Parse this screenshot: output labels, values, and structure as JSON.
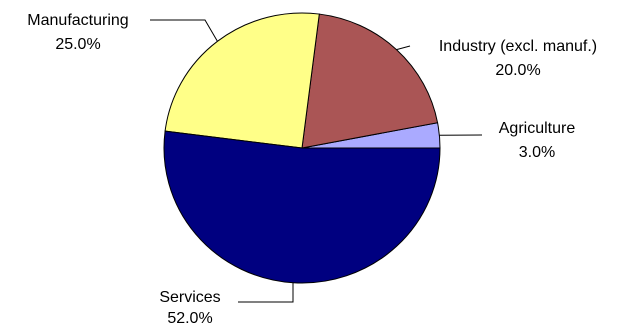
{
  "chart_data": {
    "type": "pie",
    "title": "",
    "slices": [
      {
        "label": "Agriculture",
        "value": 3.0,
        "value_label": "3.0%",
        "color": "#aaaaff"
      },
      {
        "label": "Industry (excl. manuf.)",
        "value": 20.0,
        "value_label": "20.0%",
        "color": "#aa5555"
      },
      {
        "label": "Manufacturing",
        "value": 25.0,
        "value_label": "25.0%",
        "color": "#ffff88"
      },
      {
        "label": "Services",
        "value": 52.0,
        "value_label": "52.0%",
        "color": "#000080"
      }
    ],
    "legend": "none"
  }
}
